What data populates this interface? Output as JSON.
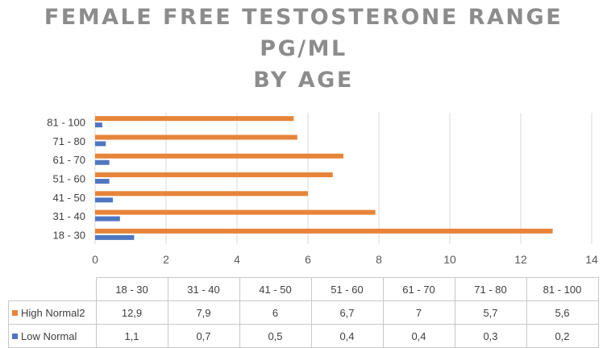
{
  "colors": {
    "high": "#e7843a",
    "low": "#4f76c0",
    "grid": "#d9d9d9",
    "axis_text": "#595959",
    "title": "#8c8c8c"
  },
  "chart_data": {
    "type": "bar",
    "orientation": "horizontal",
    "title_lines": [
      "FEMALE FREE TESTOSTERONE RANGE",
      "PG/ML",
      "BY AGE"
    ],
    "categories": [
      "18 - 30",
      "31 - 40",
      "41 - 50",
      "51 - 60",
      "61 - 70",
      "71 - 80",
      "81 - 100"
    ],
    "series": [
      {
        "name": "High Normal2",
        "values": [
          12.9,
          7.9,
          6,
          6.7,
          7,
          5.7,
          5.6
        ],
        "display": [
          "12,9",
          "7,9",
          "6",
          "6,7",
          "7",
          "5,7",
          "5,6"
        ]
      },
      {
        "name": "Low Normal",
        "values": [
          1.1,
          0.7,
          0.5,
          0.4,
          0.4,
          0.3,
          0.2
        ],
        "display": [
          "1,1",
          "0,7",
          "0,5",
          "0,4",
          "0,4",
          "0,3",
          "0,2"
        ]
      }
    ],
    "xlim": [
      0,
      14
    ],
    "xticks": [
      0,
      2,
      4,
      6,
      8,
      10,
      12,
      14
    ],
    "grid": true,
    "legend": "data-table"
  }
}
